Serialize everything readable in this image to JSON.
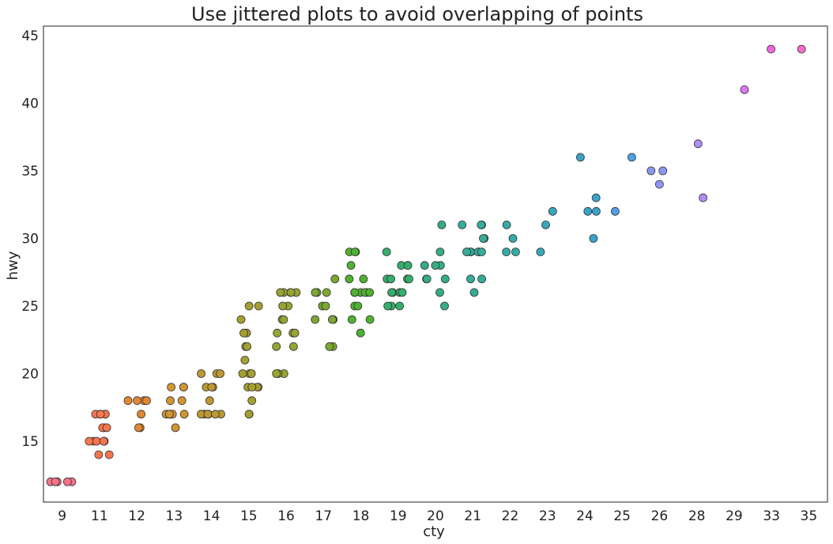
{
  "chart_data": {
    "type": "scatter",
    "title": "Use jittered plots to avoid overlapping of points",
    "xlabel": "cty",
    "ylabel": "hwy",
    "x_categories": [
      "9",
      "11",
      "12",
      "13",
      "14",
      "15",
      "16",
      "17",
      "18",
      "19",
      "20",
      "21",
      "22",
      "23",
      "24",
      "25",
      "26",
      "28",
      "29",
      "33",
      "35"
    ],
    "y_ticks": [
      15,
      20,
      25,
      30,
      35,
      40,
      45
    ],
    "ylim": [
      10.5,
      45.7
    ],
    "grid": false,
    "colors": [
      "#f77189",
      "#f7754f",
      "#e18831",
      "#d19632",
      "#bb9832",
      "#a59f31",
      "#97a431",
      "#7ba831",
      "#50b131",
      "#34ae6c",
      "#35ad83",
      "#36ab98",
      "#37aaa8",
      "#38a7b9",
      "#3ba3c9",
      "#4ea0e6",
      "#8c97f4",
      "#b18cf4",
      "#dc78f4",
      "#f465e1",
      "#f56cc3"
    ],
    "points": [
      [
        "9",
        12
      ],
      [
        "9",
        12
      ],
      [
        "9",
        12
      ],
      [
        "9",
        12
      ],
      [
        "9",
        12
      ],
      [
        "11",
        17
      ],
      [
        "11",
        17
      ],
      [
        "11",
        17
      ],
      [
        "11",
        17
      ],
      [
        "11",
        17
      ],
      [
        "11",
        16
      ],
      [
        "11",
        16
      ],
      [
        "11",
        16
      ],
      [
        "11",
        15
      ],
      [
        "11",
        15
      ],
      [
        "11",
        15
      ],
      [
        "11",
        15
      ],
      [
        "11",
        15
      ],
      [
        "11",
        15
      ],
      [
        "11",
        14
      ],
      [
        "11",
        14
      ],
      [
        "12",
        18
      ],
      [
        "12",
        18
      ],
      [
        "12",
        18
      ],
      [
        "12",
        18
      ],
      [
        "12",
        17
      ],
      [
        "12",
        16
      ],
      [
        "12",
        16
      ],
      [
        "13",
        19
      ],
      [
        "13",
        19
      ],
      [
        "13",
        19
      ],
      [
        "13",
        18
      ],
      [
        "13",
        18
      ],
      [
        "13",
        17
      ],
      [
        "13",
        17
      ],
      [
        "13",
        17
      ],
      [
        "13",
        17
      ],
      [
        "13",
        17
      ],
      [
        "13",
        17
      ],
      [
        "13",
        16
      ],
      [
        "14",
        20
      ],
      [
        "14",
        20
      ],
      [
        "14",
        20
      ],
      [
        "14",
        19
      ],
      [
        "14",
        19
      ],
      [
        "14",
        19
      ],
      [
        "14",
        18
      ],
      [
        "14",
        17
      ],
      [
        "14",
        17
      ],
      [
        "14",
        17
      ],
      [
        "14",
        17
      ],
      [
        "14",
        17
      ],
      [
        "14",
        17
      ],
      [
        "15",
        25
      ],
      [
        "15",
        25
      ],
      [
        "15",
        24
      ],
      [
        "15",
        23
      ],
      [
        "15",
        23
      ],
      [
        "15",
        22
      ],
      [
        "15",
        22
      ],
      [
        "15",
        21
      ],
      [
        "15",
        20
      ],
      [
        "15",
        20
      ],
      [
        "15",
        20
      ],
      [
        "15",
        19
      ],
      [
        "15",
        19
      ],
      [
        "15",
        19
      ],
      [
        "15",
        19
      ],
      [
        "15",
        18
      ],
      [
        "15",
        17
      ],
      [
        "15",
        17
      ],
      [
        "16",
        26
      ],
      [
        "16",
        26
      ],
      [
        "16",
        26
      ],
      [
        "16",
        26
      ],
      [
        "16",
        26
      ],
      [
        "16",
        25
      ],
      [
        "16",
        25
      ],
      [
        "16",
        24
      ],
      [
        "16",
        24
      ],
      [
        "16",
        23
      ],
      [
        "16",
        23
      ],
      [
        "16",
        23
      ],
      [
        "16",
        22
      ],
      [
        "16",
        22
      ],
      [
        "16",
        20
      ],
      [
        "16",
        20
      ],
      [
        "16",
        20
      ],
      [
        "17",
        27
      ],
      [
        "17",
        26
      ],
      [
        "17",
        26
      ],
      [
        "17",
        26
      ],
      [
        "17",
        25
      ],
      [
        "17",
        25
      ],
      [
        "17",
        24
      ],
      [
        "17",
        24
      ],
      [
        "17",
        24
      ],
      [
        "17",
        24
      ],
      [
        "17",
        24
      ],
      [
        "17",
        22
      ],
      [
        "17",
        22
      ],
      [
        "18",
        29
      ],
      [
        "18",
        29
      ],
      [
        "18",
        29
      ],
      [
        "18",
        28
      ],
      [
        "18",
        27
      ],
      [
        "18",
        27
      ],
      [
        "18",
        26
      ],
      [
        "18",
        26
      ],
      [
        "18",
        26
      ],
      [
        "18",
        26
      ],
      [
        "18",
        26
      ],
      [
        "18",
        26
      ],
      [
        "18",
        25
      ],
      [
        "18",
        25
      ],
      [
        "18",
        24
      ],
      [
        "18",
        24
      ],
      [
        "18",
        23
      ],
      [
        "19",
        29
      ],
      [
        "19",
        28
      ],
      [
        "19",
        28
      ],
      [
        "19",
        28
      ],
      [
        "19",
        27
      ],
      [
        "19",
        27
      ],
      [
        "19",
        27
      ],
      [
        "19",
        27
      ],
      [
        "19",
        26
      ],
      [
        "19",
        26
      ],
      [
        "19",
        26
      ],
      [
        "19",
        26
      ],
      [
        "19",
        25
      ],
      [
        "19",
        25
      ],
      [
        "19",
        25
      ],
      [
        "20",
        31
      ],
      [
        "20",
        29
      ],
      [
        "20",
        28
      ],
      [
        "20",
        28
      ],
      [
        "20",
        28
      ],
      [
        "20",
        27
      ],
      [
        "20",
        27
      ],
      [
        "20",
        27
      ],
      [
        "20",
        26
      ],
      [
        "20",
        25
      ],
      [
        "21",
        31
      ],
      [
        "21",
        31
      ],
      [
        "21",
        31
      ],
      [
        "21",
        30
      ],
      [
        "21",
        30
      ],
      [
        "21",
        29
      ],
      [
        "21",
        29
      ],
      [
        "21",
        29
      ],
      [
        "21",
        29
      ],
      [
        "21",
        29
      ],
      [
        "21",
        29
      ],
      [
        "21",
        29
      ],
      [
        "21",
        27
      ],
      [
        "21",
        27
      ],
      [
        "21",
        26
      ],
      [
        "22",
        31
      ],
      [
        "22",
        30
      ],
      [
        "22",
        29
      ],
      [
        "22",
        29
      ],
      [
        "23",
        32
      ],
      [
        "23",
        31
      ],
      [
        "23",
        29
      ],
      [
        "24",
        36
      ],
      [
        "24",
        33
      ],
      [
        "24",
        32
      ],
      [
        "24",
        32
      ],
      [
        "24",
        30
      ],
      [
        "25",
        36
      ],
      [
        "25",
        32
      ],
      [
        "26",
        35
      ],
      [
        "26",
        35
      ],
      [
        "26",
        34
      ],
      [
        "28",
        37
      ],
      [
        "28",
        33
      ],
      [
        "29",
        41
      ],
      [
        "33",
        44
      ],
      [
        "35",
        44
      ]
    ]
  }
}
